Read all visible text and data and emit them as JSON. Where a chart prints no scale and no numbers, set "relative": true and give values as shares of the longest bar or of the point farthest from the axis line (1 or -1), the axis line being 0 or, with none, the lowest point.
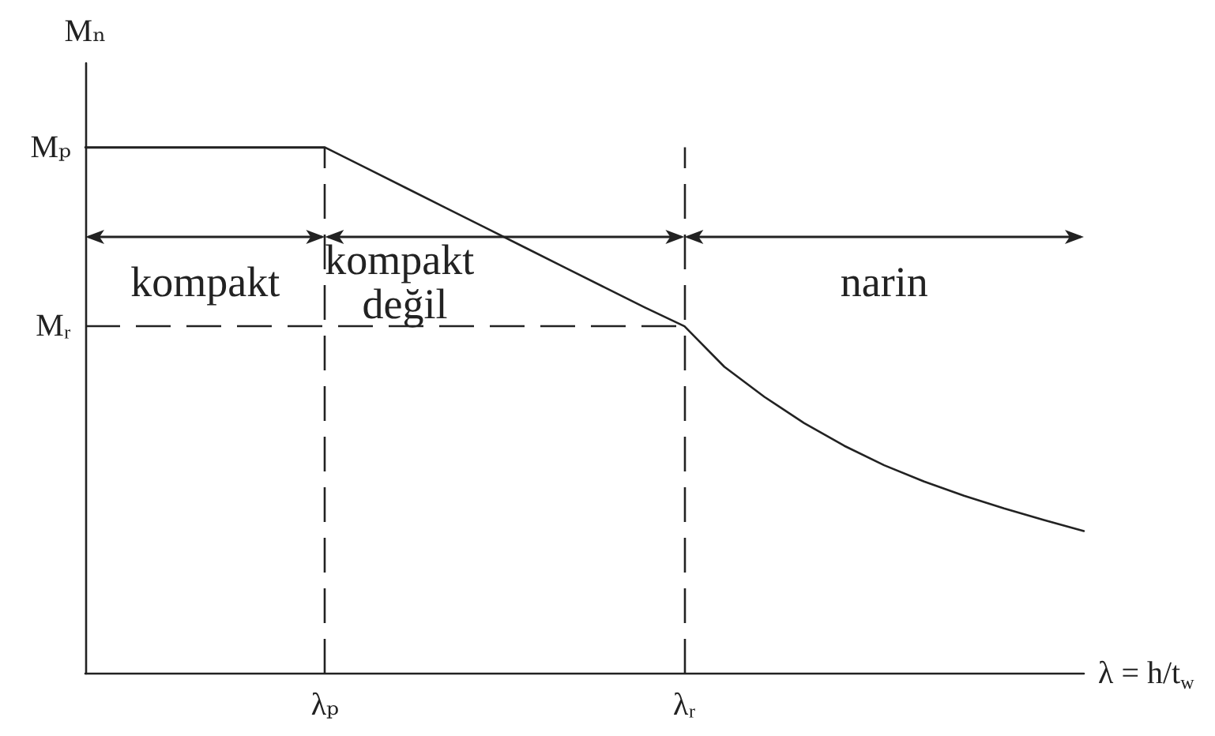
{
  "chart_data": {
    "type": "line",
    "relative": true,
    "ylabel": "Mₙ",
    "xlabel": "λ = h/t$_{w}$",
    "categories": [
      null,
      null,
      null,
      null,
      null,
      null,
      "λₚ",
      null,
      null,
      null,
      null,
      null,
      null,
      null,
      null,
      "λᵣ",
      null,
      null,
      null,
      null,
      null,
      null,
      null,
      null,
      null,
      null
    ],
    "values": [
      1,
      1,
      1,
      1,
      1,
      1,
      1,
      0.962,
      0.924,
      0.886,
      0.848,
      0.81,
      0.772,
      0.734,
      0.696,
      0.66,
      0.583,
      0.526,
      0.476,
      0.433,
      0.396,
      0.365,
      0.338,
      0.314,
      0.292,
      0.271
    ],
    "color": "#222222",
    "ref_lines": [
      {
        "axis": "x",
        "value": "λₚ",
        "line_style": "dashed"
      },
      {
        "axis": "x",
        "value": "λᵣ",
        "line_style": "dashed"
      },
      {
        "axis": "y",
        "value": 1,
        "label": "Mₚ",
        "line_style": "solid"
      },
      {
        "axis": "y",
        "value": 0.66,
        "label": "Mᵣ",
        "line_style": "dashed"
      }
    ],
    "annotations": [
      "kompakt",
      "kompakt değil",
      "narin"
    ],
    "grid": false,
    "marker": "none",
    "line_style": "solid"
  }
}
